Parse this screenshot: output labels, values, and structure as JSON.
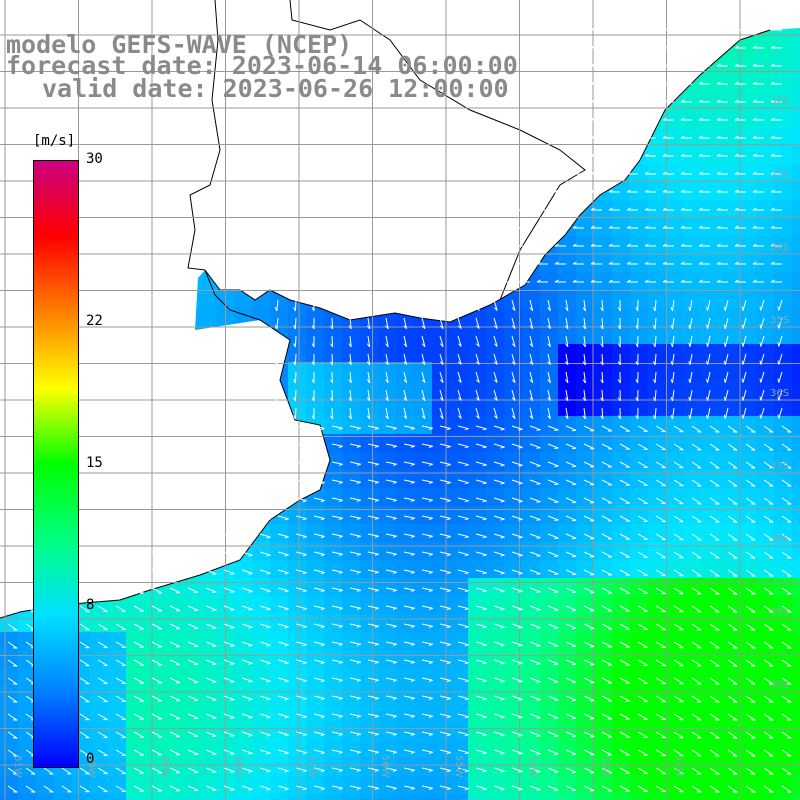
{
  "title": {
    "line1": "modelo GEFS-WAVE (NCEP)",
    "line2": "forecast date: 2023-06-14 06:00:00",
    "line3": "valid date: 2023-06-26 12:00:00"
  },
  "colorbar": {
    "unit": "[m/s]",
    "min": 0,
    "max": 30,
    "ticks": [
      "30",
      "22",
      "15",
      "8",
      "0"
    ],
    "tick_values": [
      30,
      22,
      15,
      8,
      0
    ],
    "colors": [
      "#0000ff",
      "#0080ff",
      "#00e0ff",
      "#00ff80",
      "#00ff00",
      "#ffff00",
      "#ff8000",
      "#ff0000",
      "#cc0080"
    ]
  },
  "lat_labels": [
    "32S",
    "33S",
    "34S",
    "35S",
    "36S",
    "37S",
    "38S",
    "39S",
    "40S"
  ],
  "lon_labels": [
    "61W",
    "60W",
    "59W",
    "58W",
    "57W",
    "56W",
    "55W",
    "54W",
    "53W",
    "52W"
  ]
}
